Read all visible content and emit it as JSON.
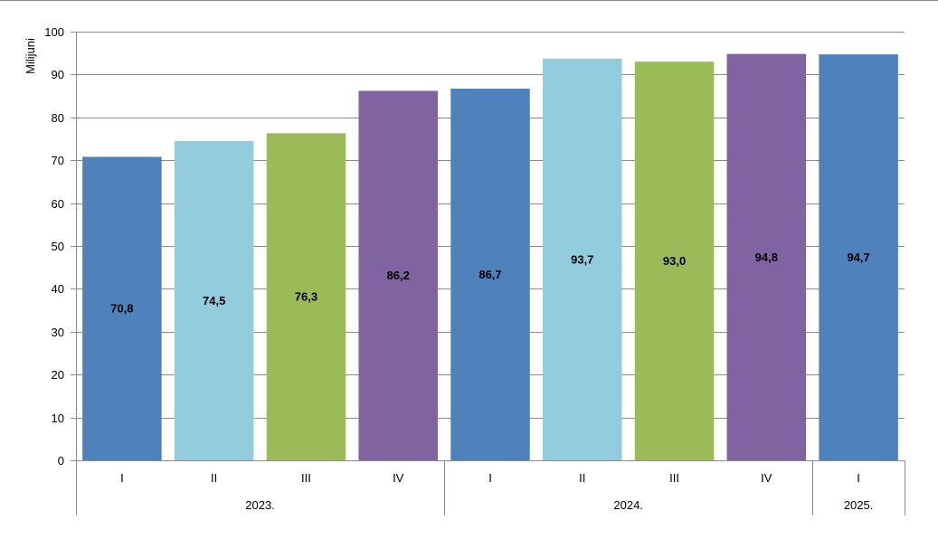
{
  "chart_data": {
    "type": "bar",
    "ylabel": "Milijuni",
    "ylim": [
      0,
      100
    ],
    "yticks": [
      0,
      10,
      20,
      30,
      40,
      50,
      60,
      70,
      80,
      90,
      100
    ],
    "grid": true,
    "categories": [
      "I",
      "II",
      "III",
      "IV",
      "I",
      "II",
      "III",
      "IV",
      "I"
    ],
    "groups": [
      {
        "label": "2023.",
        "count": 4
      },
      {
        "label": "2024.",
        "count": 4
      },
      {
        "label": "2025.",
        "count": 1
      }
    ],
    "values": [
      70.8,
      74.5,
      76.3,
      86.2,
      86.7,
      93.7,
      93.0,
      94.8,
      94.7
    ],
    "data_labels": [
      "70,8",
      "74,5",
      "76,3",
      "86,2",
      "86,7",
      "93,7",
      "93,0",
      "94,8",
      "94,7"
    ],
    "colors": [
      "#4f81bd",
      "#93cddd",
      "#9bbb59",
      "#8064a2",
      "#4f81bd",
      "#93cddd",
      "#9bbb59",
      "#8064a2",
      "#4f81bd"
    ]
  }
}
